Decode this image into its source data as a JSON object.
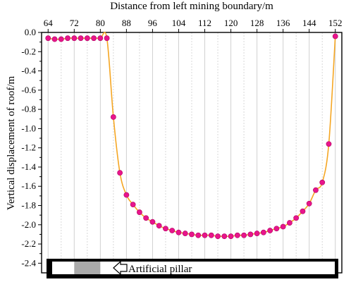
{
  "chart_data": {
    "type": "line",
    "xlabel": "Distance from left mining boundary/m",
    "ylabel": "Vertical displacement of roof/m",
    "xlim": [
      62,
      154
    ],
    "ylim": [
      -2.5,
      0.0
    ],
    "x_ticks": [
      "64",
      "72",
      "80",
      "88",
      "96",
      "104",
      "112",
      "120",
      "128",
      "136",
      "144",
      "152"
    ],
    "y_ticks": [
      "0.0",
      "-0.2",
      "-0.4",
      "-0.6",
      "-0.8",
      "-1.0",
      "-1.2",
      "-1.4",
      "-1.6",
      "-1.8",
      "-2.0",
      "-2.2",
      "-2.4"
    ],
    "x_axis_position": "top",
    "grid": "vertical",
    "colors": {
      "line": "#f5a623",
      "marker": "#e8158c",
      "pillar_fill": "#aaaaaa",
      "legend_bar": "#000000"
    },
    "annotation": {
      "label": "Artificial pillar",
      "pillar_x": [
        72,
        80
      ]
    },
    "series": [
      {
        "x": [
          64,
          66,
          68,
          70,
          72,
          74,
          76,
          78,
          80,
          82,
          84,
          86,
          88,
          90,
          92,
          94,
          96,
          98,
          100,
          102,
          104,
          106,
          108,
          110,
          112,
          114,
          116,
          118,
          120,
          122,
          124,
          126,
          128,
          130,
          132,
          134,
          136,
          138,
          140,
          142,
          144,
          146,
          148,
          150,
          152
        ],
        "values": [
          -0.06,
          -0.07,
          -0.07,
          -0.06,
          -0.06,
          -0.06,
          -0.06,
          -0.06,
          -0.06,
          -0.06,
          -0.88,
          -1.46,
          -1.69,
          -1.79,
          -1.87,
          -1.93,
          -1.97,
          -2.01,
          -2.04,
          -2.06,
          -2.08,
          -2.09,
          -2.1,
          -2.11,
          -2.11,
          -2.11,
          -2.12,
          -2.12,
          -2.12,
          -2.11,
          -2.11,
          -2.1,
          -2.09,
          -2.08,
          -2.06,
          -2.04,
          -2.02,
          -1.98,
          -1.93,
          -1.86,
          -1.78,
          -1.64,
          -1.56,
          -1.16,
          -0.04
        ]
      }
    ]
  }
}
